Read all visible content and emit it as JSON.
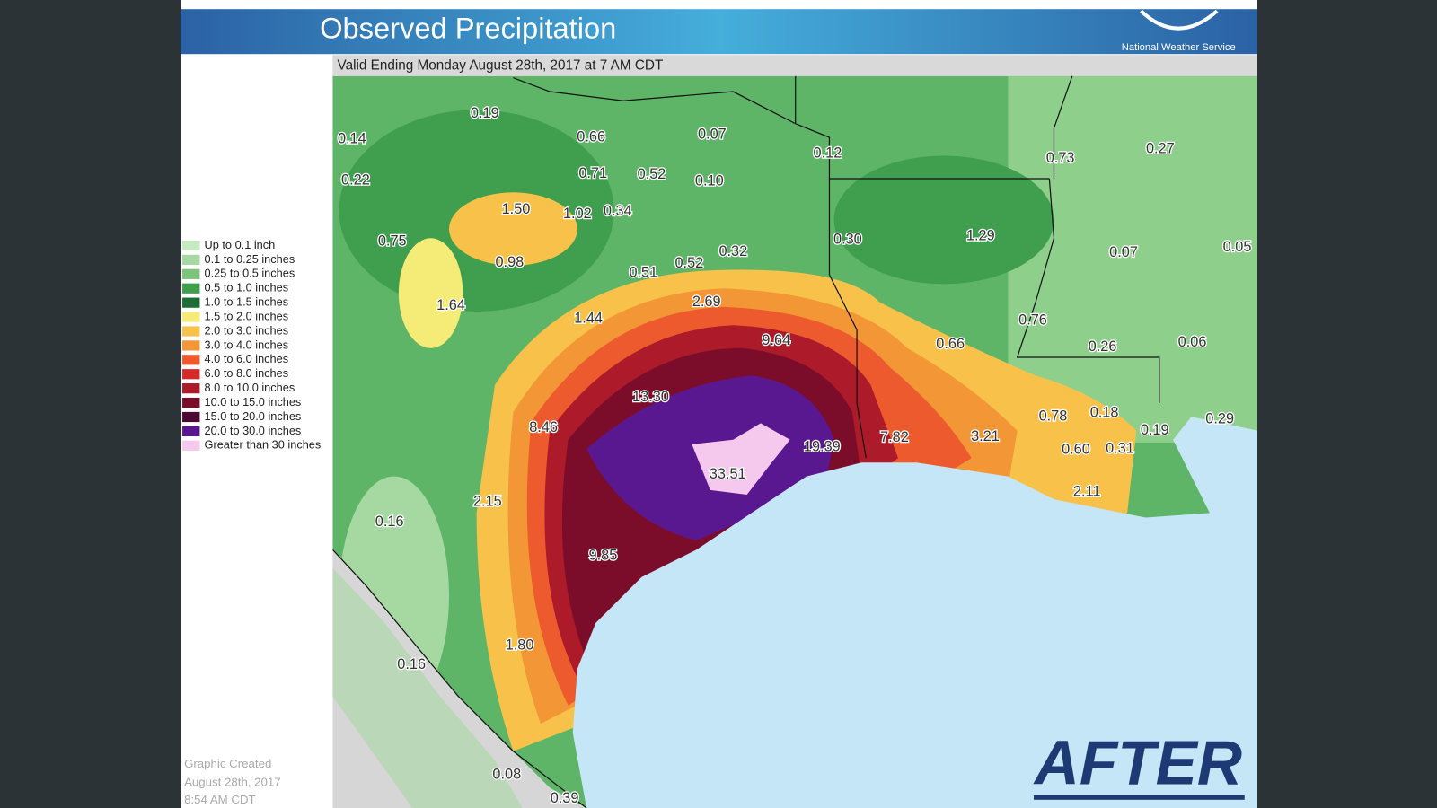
{
  "header": {
    "title": "Observed Precipitation",
    "agency": "National Weather Service"
  },
  "valid": "Valid Ending Monday August 28th, 2017 at 7 AM CDT",
  "legend": [
    {
      "label": "Up to 0.1 inch",
      "color": "#c6e9c4"
    },
    {
      "label": "0.1 to 0.25 inches",
      "color": "#a6d9a2"
    },
    {
      "label": "0.25 to 0.5 inches",
      "color": "#7cc47b"
    },
    {
      "label": "0.5 to 1.0 inches",
      "color": "#3f9f4e"
    },
    {
      "label": "1.0 to 1.5 inches",
      "color": "#1c6e34"
    },
    {
      "label": "1.5 to 2.0 inches",
      "color": "#f5ec78"
    },
    {
      "label": "2.0 to 3.0 inches",
      "color": "#f7c14a"
    },
    {
      "label": "3.0 to 4.0 inches",
      "color": "#f29636"
    },
    {
      "label": "4.0 to 6.0 inches",
      "color": "#ec5a2e"
    },
    {
      "label": "6.0 to 8.0 inches",
      "color": "#d52a2a"
    },
    {
      "label": "8.0 to 10.0 inches",
      "color": "#ad1a2a"
    },
    {
      "label": "10.0 to 15.0 inches",
      "color": "#7c0d2a"
    },
    {
      "label": "15.0 to 20.0 inches",
      "color": "#4a0a34"
    },
    {
      "label": "20.0 to 30.0 inches",
      "color": "#5a1890"
    },
    {
      "label": "Greater than 30 inches",
      "color": "#f5c8ee"
    }
  ],
  "map_labels": [
    "0.19",
    "0.14",
    "0.66",
    "0.07",
    "0.12",
    "0.73",
    "0.27",
    "0.22",
    "0.71",
    "0.52",
    "0.10",
    "1.50",
    "1.02",
    "0.34",
    "0.75",
    "0.98",
    "0.51",
    "0.52",
    "0.32",
    "0.30",
    "1.29",
    "0.07",
    "0.05",
    "1.64",
    "2.69",
    "1.44",
    "9.64",
    "0.76",
    "0.66",
    "0.26",
    "0.06",
    "13.30",
    "0.78",
    "0.18",
    "0.19",
    "0.29",
    "8.46",
    "19.39",
    "7.82",
    "3.21",
    "0.60",
    "0.31",
    "33.51",
    "2.15",
    "2.11",
    "0.16",
    "9.85",
    "1.80",
    "0.16",
    "0.08",
    "0.39"
  ],
  "footer": {
    "created": [
      "Graphic Created",
      "August 28th, 2017",
      "8:54 AM CDT"
    ],
    "stamp": "AFTER"
  }
}
